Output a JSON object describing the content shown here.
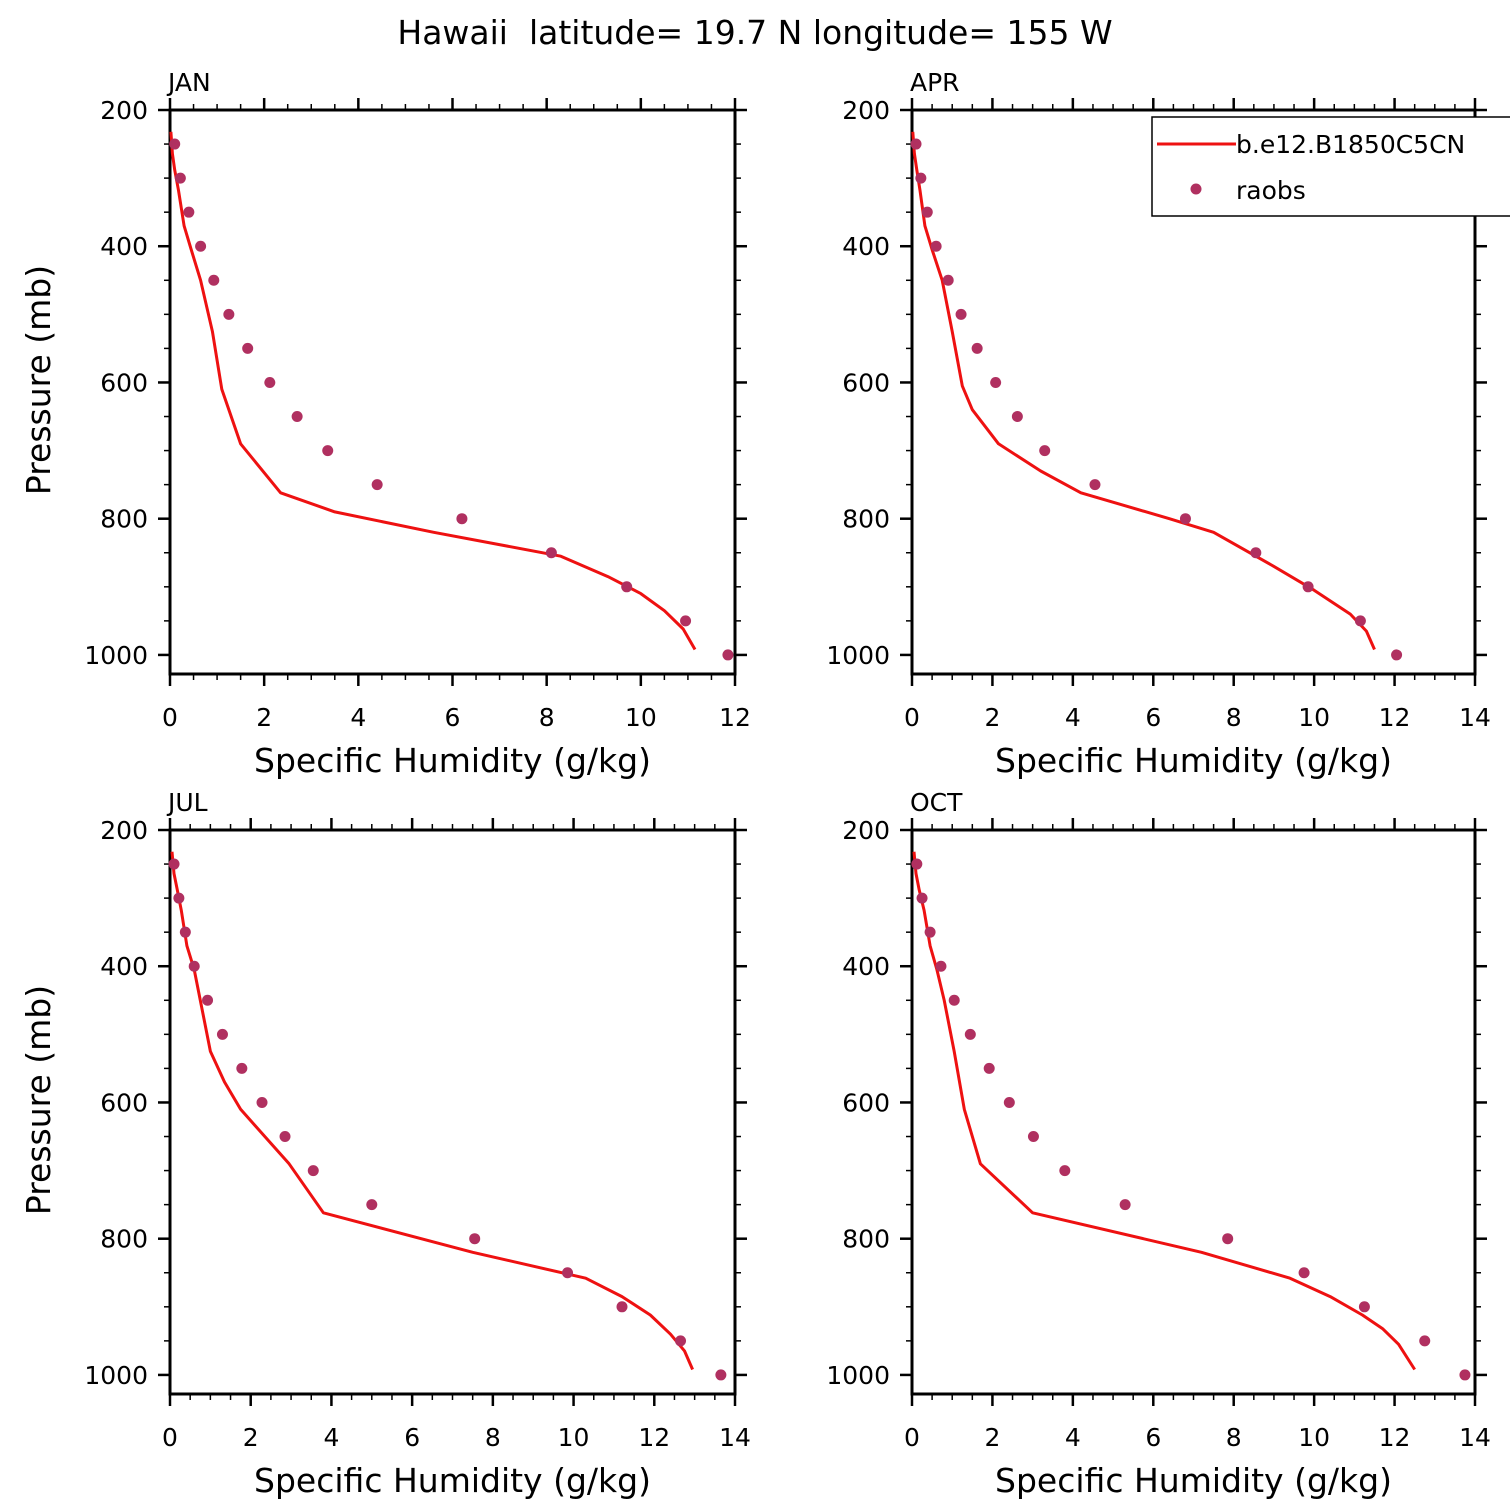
{
  "figure": {
    "title": "Hawaii  latitude= 19.7 N longitude= 155 W"
  },
  "colors": {
    "model": "#ee1111",
    "raobs": "#b03060",
    "axis": "#000000"
  },
  "chart_data": [
    {
      "type": "line",
      "panel_title": "JAN",
      "xlabel": "Specific Humidity (g/kg)",
      "ylabel": "Pressure (mb)",
      "xlim": [
        0,
        12
      ],
      "ylim": [
        1000,
        200
      ],
      "y_inverted": true,
      "xticks": [
        0,
        2,
        4,
        6,
        8,
        10,
        12
      ],
      "yticks": [
        200,
        400,
        600,
        800,
        1000
      ],
      "legend": null,
      "series": [
        {
          "name": "b.e12.B1850C5CN",
          "style": "line",
          "x": [
            0.02,
            0.05,
            0.1,
            0.18,
            0.3,
            0.45,
            0.65,
            0.9,
            1.1,
            1.5,
            2.35,
            3.5,
            5.6,
            8.3,
            9.3,
            10.0,
            10.5,
            10.9,
            11.15
          ],
          "y": [
            232,
            264,
            288,
            318,
            370,
            405,
            450,
            525,
            610,
            690,
            762,
            790,
            820,
            855,
            885,
            910,
            935,
            962,
            992
          ]
        },
        {
          "name": "raobs",
          "style": "markers",
          "x": [
            0.1,
            0.22,
            0.4,
            0.65,
            0.93,
            1.25,
            1.65,
            2.12,
            2.7,
            3.35,
            4.4,
            6.2,
            8.1,
            9.7,
            10.95,
            11.85
          ],
          "y": [
            250,
            300,
            350,
            400,
            450,
            500,
            550,
            600,
            650,
            700,
            750,
            800,
            850,
            900,
            950,
            1000
          ]
        }
      ]
    },
    {
      "type": "line",
      "panel_title": "APR",
      "xlabel": "Specific Humidity (g/kg)",
      "ylabel": "",
      "xlim": [
        0,
        14
      ],
      "ylim": [
        1000,
        200
      ],
      "y_inverted": true,
      "xticks": [
        0,
        2,
        4,
        6,
        8,
        10,
        12,
        14
      ],
      "yticks": [
        200,
        400,
        600,
        800,
        1000
      ],
      "legend": {
        "position": "top-right",
        "entries": [
          "b.e12.B1850C5CN",
          "raobs"
        ]
      },
      "series": [
        {
          "name": "b.e12.B1850C5CN",
          "style": "line",
          "x": [
            0.02,
            0.06,
            0.12,
            0.2,
            0.32,
            0.5,
            0.75,
            1.0,
            1.25,
            1.5,
            2.15,
            3.2,
            4.2,
            6.4,
            7.5,
            9.0,
            10.0,
            10.9,
            11.3,
            11.5
          ],
          "y": [
            232,
            264,
            288,
            318,
            370,
            405,
            450,
            525,
            605,
            640,
            690,
            730,
            762,
            800,
            820,
            870,
            905,
            940,
            965,
            992
          ]
        },
        {
          "name": "raobs",
          "style": "markers",
          "x": [
            0.1,
            0.22,
            0.38,
            0.6,
            0.9,
            1.22,
            1.62,
            2.08,
            2.62,
            3.3,
            4.55,
            6.8,
            8.55,
            9.85,
            11.15,
            12.05
          ],
          "y": [
            250,
            300,
            350,
            400,
            450,
            500,
            550,
            600,
            650,
            700,
            750,
            800,
            850,
            900,
            950,
            1000
          ]
        }
      ]
    },
    {
      "type": "line",
      "panel_title": "JUL",
      "xlabel": "Specific Humidity (g/kg)",
      "ylabel": "Pressure (mb)",
      "xlim": [
        0,
        14
      ],
      "ylim": [
        1000,
        200
      ],
      "y_inverted": true,
      "xticks": [
        0,
        2,
        4,
        6,
        8,
        10,
        12,
        14
      ],
      "yticks": [
        200,
        400,
        600,
        800,
        1000
      ],
      "legend": null,
      "series": [
        {
          "name": "b.e12.B1850C5CN",
          "style": "line",
          "x": [
            0.05,
            0.1,
            0.18,
            0.28,
            0.42,
            0.6,
            0.75,
            1.0,
            1.35,
            1.75,
            2.95,
            3.8,
            7.5,
            10.3,
            11.2,
            11.9,
            12.4,
            12.75,
            12.95
          ],
          "y": [
            232,
            264,
            288,
            318,
            370,
            405,
            450,
            525,
            570,
            610,
            690,
            762,
            820,
            858,
            885,
            912,
            940,
            965,
            992
          ]
        },
        {
          "name": "raobs",
          "style": "markers",
          "x": [
            0.1,
            0.22,
            0.38,
            0.6,
            0.93,
            1.3,
            1.78,
            2.28,
            2.85,
            3.55,
            5.0,
            7.55,
            9.85,
            11.2,
            12.65,
            13.65
          ],
          "y": [
            250,
            300,
            350,
            400,
            450,
            500,
            550,
            600,
            650,
            700,
            750,
            800,
            850,
            900,
            950,
            1000
          ]
        }
      ]
    },
    {
      "type": "line",
      "panel_title": "OCT",
      "xlabel": "Specific Humidity (g/kg)",
      "ylabel": "",
      "xlim": [
        0,
        14
      ],
      "ylim": [
        1000,
        200
      ],
      "y_inverted": true,
      "xticks": [
        0,
        2,
        4,
        6,
        8,
        10,
        12,
        14
      ],
      "yticks": [
        200,
        400,
        600,
        800,
        1000
      ],
      "legend": null,
      "series": [
        {
          "name": "b.e12.B1850C5CN",
          "style": "line",
          "x": [
            0.05,
            0.1,
            0.18,
            0.3,
            0.45,
            0.62,
            0.8,
            1.05,
            1.3,
            1.7,
            3.0,
            7.2,
            9.4,
            10.4,
            11.2,
            11.7,
            12.1,
            12.5
          ],
          "y": [
            232,
            264,
            288,
            318,
            370,
            405,
            450,
            525,
            610,
            690,
            762,
            820,
            858,
            885,
            912,
            932,
            955,
            992
          ]
        },
        {
          "name": "raobs",
          "style": "markers",
          "x": [
            0.12,
            0.25,
            0.45,
            0.72,
            1.05,
            1.45,
            1.92,
            2.42,
            3.02,
            3.8,
            5.3,
            7.85,
            9.75,
            11.25,
            12.75,
            13.75
          ],
          "y": [
            250,
            300,
            350,
            400,
            450,
            500,
            550,
            600,
            650,
            700,
            750,
            800,
            850,
            900,
            950,
            1000
          ]
        }
      ]
    }
  ]
}
